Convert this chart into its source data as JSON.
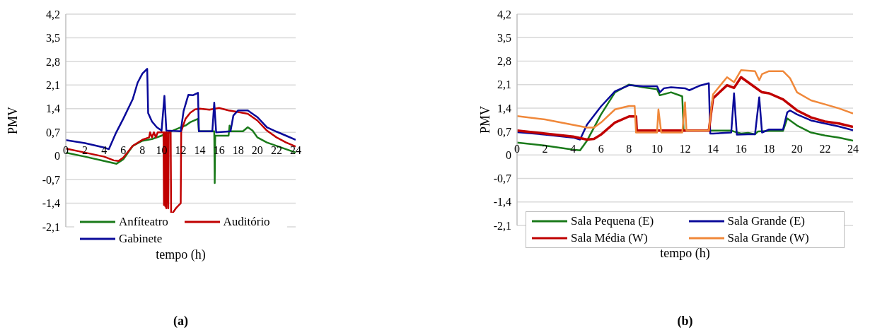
{
  "chart_data": [
    {
      "type": "line",
      "xlabel": "tempo (h)",
      "ylabel": "PMV",
      "xlim": [
        0,
        24
      ],
      "xticks": [
        0,
        2,
        4,
        6,
        8,
        10,
        12,
        14,
        16,
        18,
        20,
        22,
        24
      ],
      "ylim": [
        -2.1,
        4.2
      ],
      "yticks": [
        {
          "value": -2.1,
          "label": "-2,1"
        },
        {
          "value": -1.4,
          "label": "-1,4"
        },
        {
          "value": -0.7,
          "label": "-0,7"
        },
        0,
        {
          "value": 0.7,
          "label": "0,7"
        },
        {
          "value": 1.4,
          "label": "1,4"
        },
        {
          "value": 2.1,
          "label": "2,1"
        },
        {
          "value": 2.8,
          "label": "2,8"
        },
        {
          "value": 3.5,
          "label": "3,5"
        },
        {
          "value": 4.2,
          "label": "4,2"
        }
      ],
      "grid": "y",
      "legend": "bottom",
      "marker": "none",
      "annotations": [
        "(a)"
      ],
      "series": [
        {
          "name": "Anfíteatro",
          "color": "#1a7a1a",
          "x": [
            0,
            2,
            4,
            5.3,
            6,
            7,
            8,
            9,
            10,
            11,
            12,
            12.5,
            13,
            13.8,
            13.9,
            15.5,
            15.55,
            15.6,
            17,
            17.1,
            17.2,
            18.5,
            19,
            19.5,
            20,
            21,
            22,
            23,
            24
          ],
          "values": [
            0.1,
            -0.02,
            -0.15,
            -0.23,
            -0.1,
            0.3,
            0.45,
            0.5,
            0.6,
            0.73,
            0.85,
            0.9,
            1.0,
            1.1,
            0.73,
            0.73,
            -0.8,
            0.6,
            0.6,
            0.9,
            0.73,
            0.73,
            0.85,
            0.75,
            0.55,
            0.4,
            0.3,
            0.2,
            0.1
          ]
        },
        {
          "name": "Auditório",
          "color": "#c00000",
          "x": [
            0,
            2,
            4,
            5,
            5.5,
            6,
            7,
            8,
            8.7,
            8.8,
            9,
            9.2,
            9.4,
            9.6,
            10,
            10.2,
            10.25,
            10.3,
            10.4,
            10.45,
            10.5,
            10.55,
            10.7,
            10.75,
            10.95,
            11,
            11.5,
            12,
            12.05,
            12.5,
            13,
            13.5,
            14,
            15,
            16,
            17,
            18,
            19,
            20,
            21,
            22,
            23,
            24
          ],
          "values": [
            0.22,
            0.1,
            -0.02,
            -0.13,
            -0.15,
            -0.05,
            0.3,
            0.48,
            0.55,
            0.7,
            0.55,
            0.7,
            0.55,
            0.7,
            0.7,
            0.7,
            -1.45,
            0.7,
            -1.5,
            0.7,
            -1.55,
            0.7,
            -1.55,
            0.7,
            0.7,
            -1.75,
            -1.55,
            -1.4,
            0.73,
            1.1,
            1.28,
            1.38,
            1.4,
            1.37,
            1.42,
            1.35,
            1.3,
            1.25,
            1.05,
            0.75,
            0.55,
            0.4,
            0.28
          ]
        },
        {
          "name": "Gabinete",
          "color": "#0a0a9a",
          "x": [
            0,
            2,
            4,
            4.5,
            5.2,
            6,
            7,
            7.5,
            8,
            8.5,
            8.6,
            9,
            9.5,
            10,
            10.3,
            10.5,
            12,
            12.3,
            12.8,
            13.3,
            13.8,
            13.9,
            15.3,
            15.5,
            15.7,
            17.2,
            17.5,
            18,
            19,
            20,
            21,
            22,
            23,
            24
          ],
          "values": [
            0.47,
            0.38,
            0.25,
            0.2,
            0.66,
            1.1,
            1.69,
            2.17,
            2.44,
            2.58,
            1.27,
            1.02,
            0.85,
            0.75,
            1.78,
            0.75,
            0.73,
            1.33,
            1.81,
            1.8,
            1.87,
            0.73,
            0.73,
            1.58,
            0.7,
            0.73,
            1.2,
            1.35,
            1.35,
            1.15,
            0.85,
            0.72,
            0.6,
            0.48
          ]
        }
      ]
    },
    {
      "type": "line",
      "xlabel": "tempo (h)",
      "ylabel": "PMV",
      "xlim": [
        0,
        24
      ],
      "xticks": [
        0,
        2,
        4,
        6,
        8,
        10,
        12,
        14,
        16,
        18,
        20,
        22,
        24
      ],
      "ylim": [
        -2.1,
        4.2
      ],
      "yticks": [
        {
          "value": -2.1,
          "label": "-2,1"
        },
        {
          "value": -1.4,
          "label": "-1,4"
        },
        {
          "value": -0.7,
          "label": "-0,7"
        },
        0,
        {
          "value": 0.7,
          "label": "0,7"
        },
        {
          "value": 1.4,
          "label": "1,4"
        },
        {
          "value": 2.1,
          "label": "2,1"
        },
        {
          "value": 2.8,
          "label": "2,8"
        },
        {
          "value": 3.5,
          "label": "3,5"
        },
        {
          "value": 4.2,
          "label": "4,2"
        }
      ],
      "grid": "y",
      "legend": "bottom",
      "marker": "none",
      "annotations": [
        "(b)"
      ],
      "series": [
        {
          "name": "Sala Pequena (E)",
          "color": "#1a7a1a",
          "x": [
            0,
            2,
            4,
            4.5,
            5,
            6,
            7,
            8,
            9,
            10,
            10.2,
            11,
            11.8,
            11.9,
            13.7,
            15.3,
            15.5,
            16,
            16.5,
            17,
            17.2,
            18,
            19,
            19.3,
            20,
            21,
            22,
            23,
            24
          ],
          "values": [
            0.37,
            0.28,
            0.16,
            0.14,
            0.43,
            1.21,
            1.87,
            2.1,
            2.02,
            1.96,
            1.78,
            1.87,
            1.75,
            0.73,
            0.73,
            0.73,
            0.7,
            0.64,
            0.66,
            0.62,
            0.7,
            0.72,
            0.72,
            1.09,
            0.88,
            0.67,
            0.58,
            0.52,
            0.43
          ]
        },
        {
          "name": "Sala Grande (E)",
          "color": "#0a0a9a",
          "x": [
            0,
            2,
            4,
            4.5,
            5,
            6,
            7,
            8,
            9,
            10,
            10.2,
            10.5,
            11,
            12,
            12.3,
            13,
            13.7,
            13.8,
            14,
            15.3,
            15.5,
            15.7,
            16.5,
            17,
            17.3,
            17.5,
            18,
            19,
            19.3,
            19.5,
            20,
            21,
            22,
            23,
            24
          ],
          "values": [
            0.68,
            0.61,
            0.52,
            0.46,
            0.91,
            1.45,
            1.9,
            2.08,
            2.05,
            2.05,
            1.87,
            1.99,
            2.02,
            1.99,
            1.93,
            2.06,
            2.14,
            0.64,
            0.64,
            0.67,
            1.84,
            0.61,
            0.62,
            0.62,
            1.72,
            0.67,
            0.76,
            0.76,
            1.27,
            1.33,
            1.21,
            1.03,
            0.94,
            0.85,
            0.74
          ]
        },
        {
          "name": "Sala Média (W)",
          "color": "#c00000",
          "x": [
            0,
            2,
            4,
            5,
            5.5,
            6,
            7,
            8,
            8.5,
            8.55,
            13.7,
            14,
            15,
            15.5,
            16,
            17,
            17.5,
            18,
            19,
            20,
            21,
            22,
            23,
            24
          ],
          "values": [
            0.73,
            0.64,
            0.55,
            0.46,
            0.48,
            0.61,
            0.97,
            1.15,
            1.15,
            0.73,
            0.73,
            1.69,
            2.08,
            2.0,
            2.32,
            2.02,
            1.87,
            1.84,
            1.66,
            1.33,
            1.12,
            1.0,
            0.94,
            0.84
          ]
        },
        {
          "name": "Sala Grande (W)",
          "color": "#f0883a",
          "x": [
            0,
            2,
            3.5,
            5,
            5.5,
            6,
            7,
            8,
            8.4,
            8.5,
            10,
            10.1,
            10.3,
            11.8,
            12,
            12.1,
            13.7,
            14,
            15,
            15.5,
            16,
            17,
            17.3,
            17.5,
            18,
            19,
            19.5,
            20,
            21,
            22,
            23,
            24
          ],
          "values": [
            1.16,
            1.06,
            0.94,
            0.82,
            0.82,
            0.97,
            1.36,
            1.46,
            1.46,
            0.67,
            0.67,
            1.36,
            0.67,
            0.67,
            1.57,
            0.73,
            0.73,
            1.81,
            2.32,
            2.17,
            2.53,
            2.5,
            2.23,
            2.41,
            2.5,
            2.5,
            2.29,
            1.87,
            1.63,
            1.51,
            1.39,
            1.24
          ]
        }
      ]
    }
  ]
}
